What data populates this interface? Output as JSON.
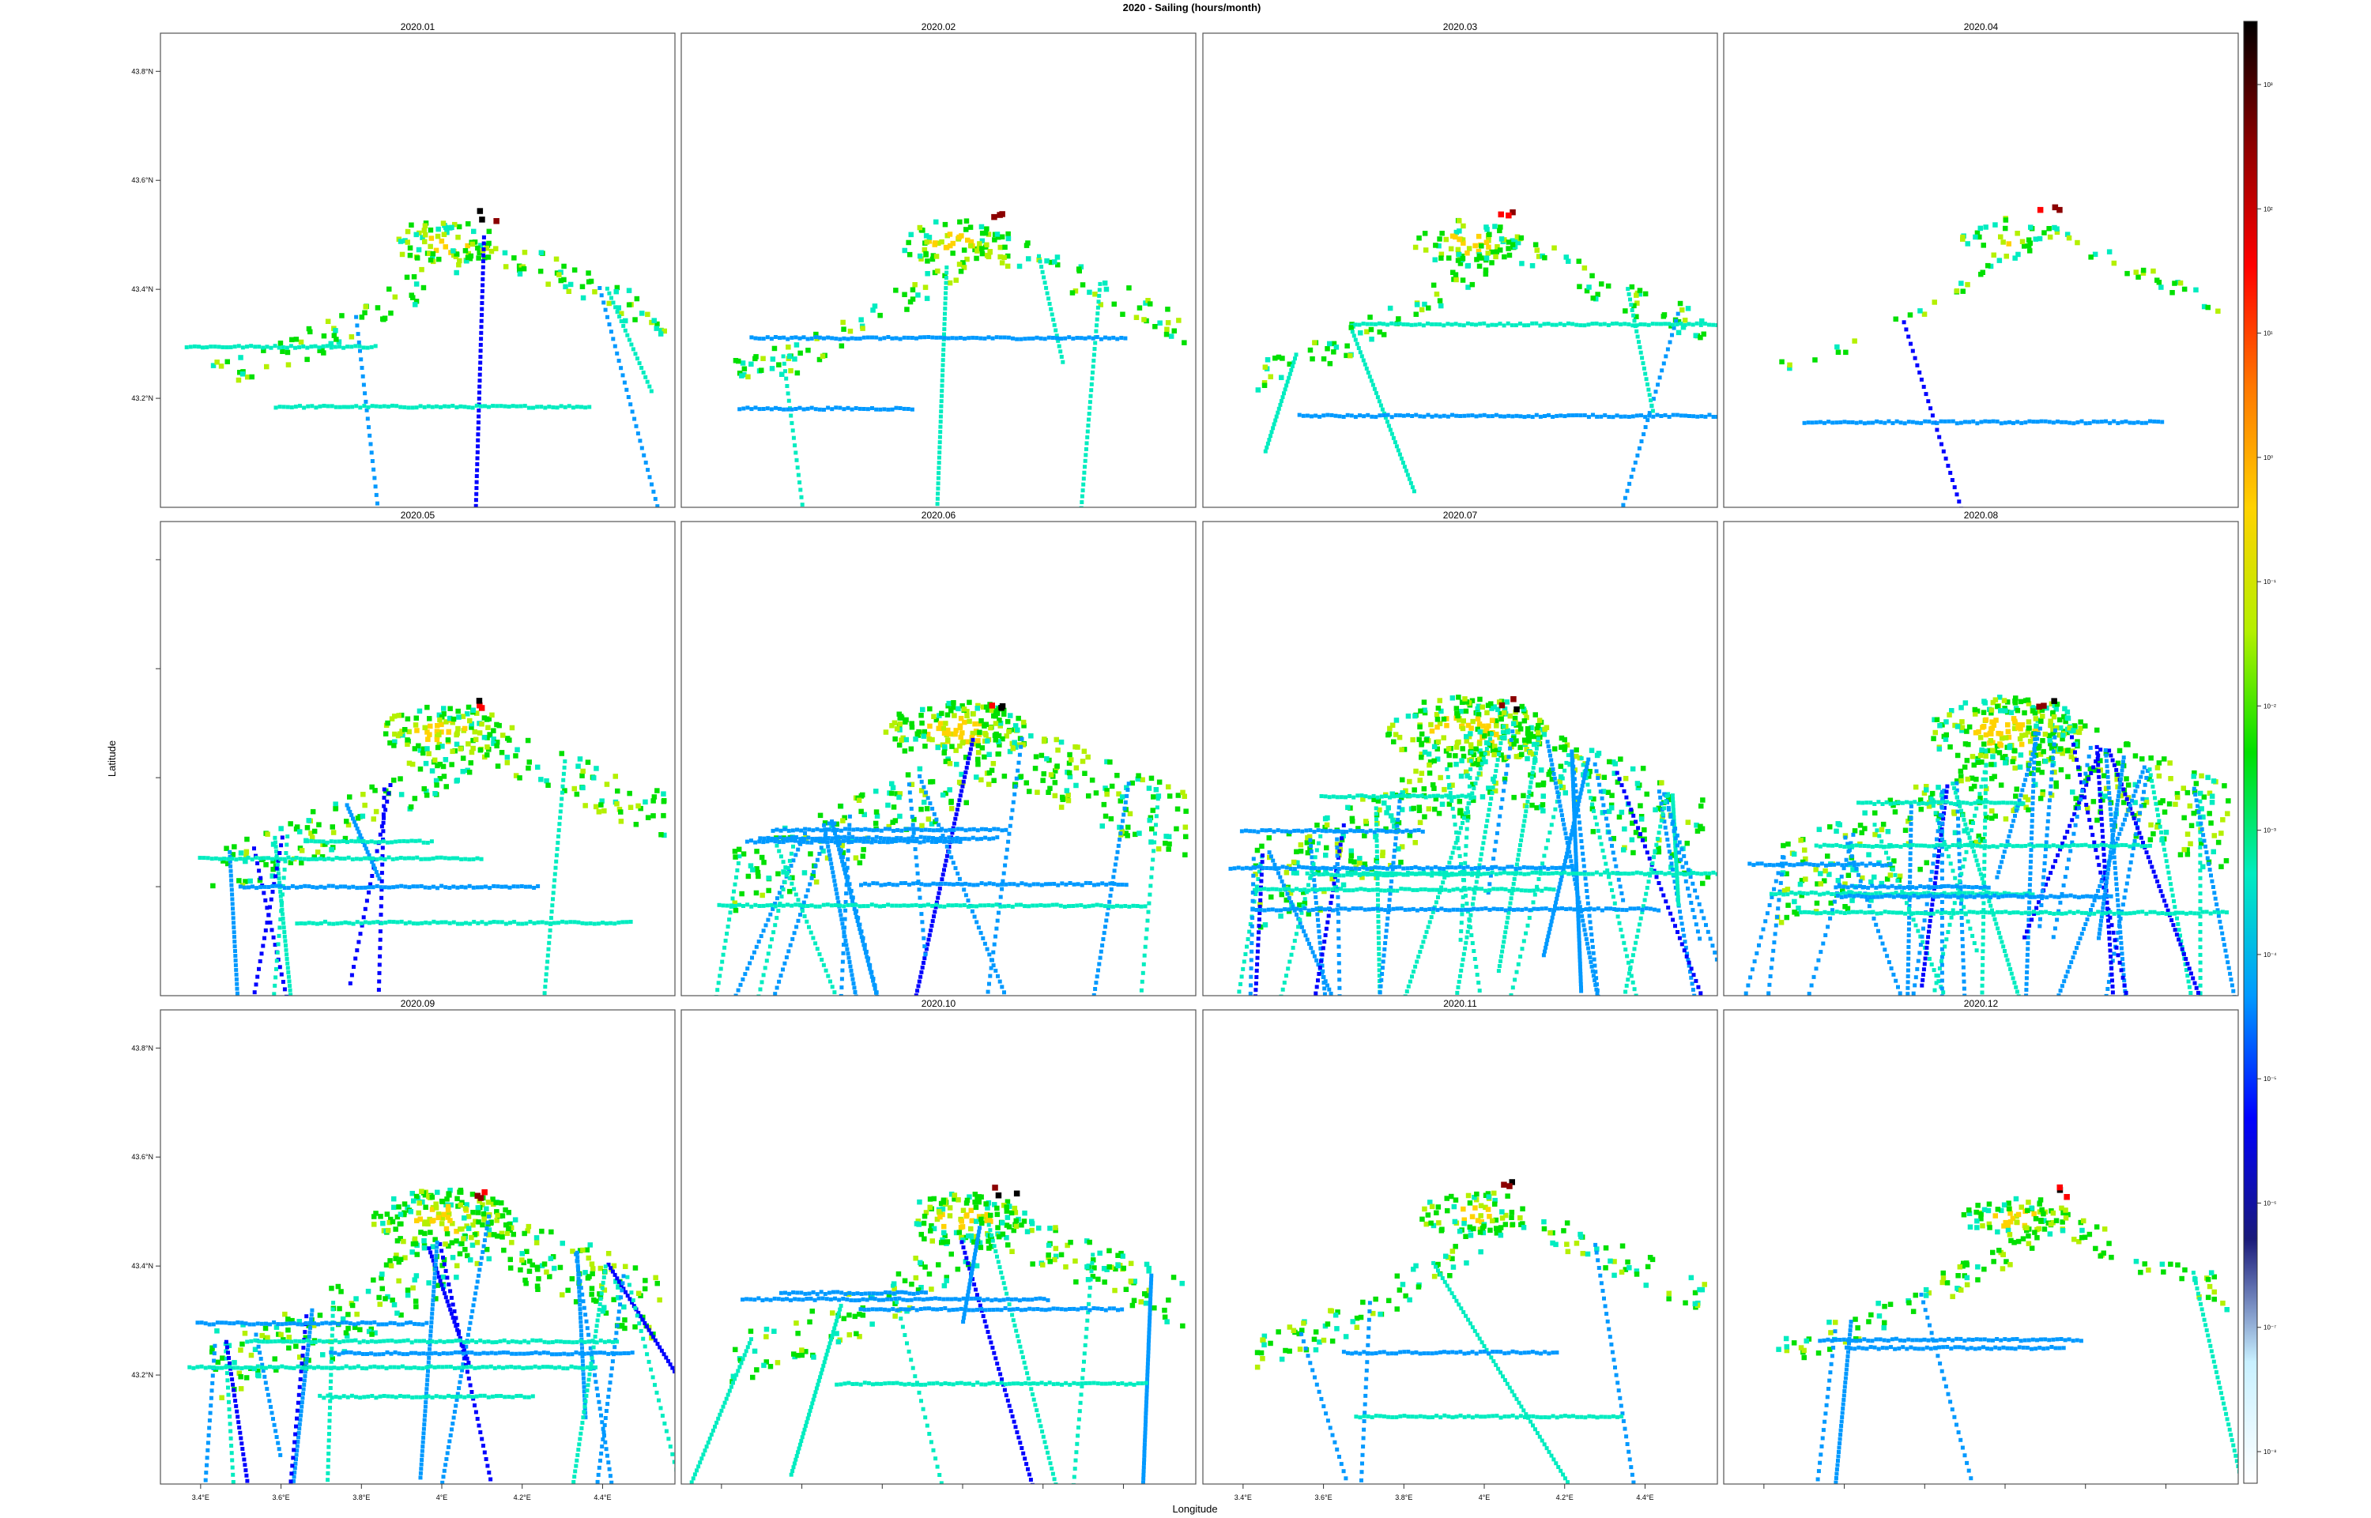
{
  "chart_data": {
    "type": "heatmap",
    "title": "2020 - Sailing (hours/month)",
    "xlabel": "Longitude",
    "ylabel": "Latitude",
    "xlim": [
      3.3,
      4.58
    ],
    "ylim": [
      43.0,
      43.87
    ],
    "x_ticks": [
      "3.4°E",
      "3.6°E",
      "3.8°E",
      "4°E",
      "4.2°E",
      "4.4°E"
    ],
    "x_tick_values": [
      3.4,
      3.6,
      3.8,
      4.0,
      4.2,
      4.4
    ],
    "y_ticks": [
      "43.8°N",
      "43.6°N",
      "43.4°N",
      "43.2°N"
    ],
    "y_tick_values": [
      43.8,
      43.6,
      43.4,
      43.2
    ],
    "colorbar": {
      "scale": "log",
      "tick_labels": [
        "10³",
        "10²",
        "10¹",
        "10⁰",
        "10⁻¹",
        "10⁻²",
        "10⁻³",
        "10⁻⁴",
        "10⁻⁵",
        "10⁻⁶",
        "10⁻⁷",
        "10⁻⁸"
      ],
      "colors": [
        "#000000",
        "#8b0000",
        "#ff0000",
        "#ff7700",
        "#ffd200",
        "#b4f000",
        "#00e000",
        "#00ecc0",
        "#0099ff",
        "#0000ff",
        "#1a1a7a",
        "#c8f0ff",
        "#ffffff"
      ]
    },
    "panels": [
      {
        "label": "2020.01",
        "hotspot": [
          4.1,
          43.51
        ],
        "activity": "low"
      },
      {
        "label": "2020.02",
        "hotspot": [
          4.07,
          43.51
        ],
        "activity": "low"
      },
      {
        "label": "2020.03",
        "hotspot": [
          4.05,
          43.51
        ],
        "activity": "low"
      },
      {
        "label": "2020.04",
        "hotspot": [
          4.1,
          43.52
        ],
        "activity": "very-low"
      },
      {
        "label": "2020.05",
        "hotspot": [
          4.1,
          43.51
        ],
        "activity": "medium"
      },
      {
        "label": "2020.06",
        "hotspot": [
          4.08,
          43.51
        ],
        "activity": "high"
      },
      {
        "label": "2020.07",
        "hotspot": [
          4.05,
          43.51
        ],
        "activity": "very-high"
      },
      {
        "label": "2020.08",
        "hotspot": [
          4.1,
          43.51
        ],
        "activity": "very-high"
      },
      {
        "label": "2020.09",
        "hotspot": [
          4.1,
          43.51
        ],
        "activity": "high"
      },
      {
        "label": "2020.10",
        "hotspot": [
          4.1,
          43.51
        ],
        "activity": "medium"
      },
      {
        "label": "2020.11",
        "hotspot": [
          4.07,
          43.52
        ],
        "activity": "low"
      },
      {
        "label": "2020.12",
        "hotspot": [
          4.12,
          43.51
        ],
        "activity": "low"
      }
    ]
  }
}
